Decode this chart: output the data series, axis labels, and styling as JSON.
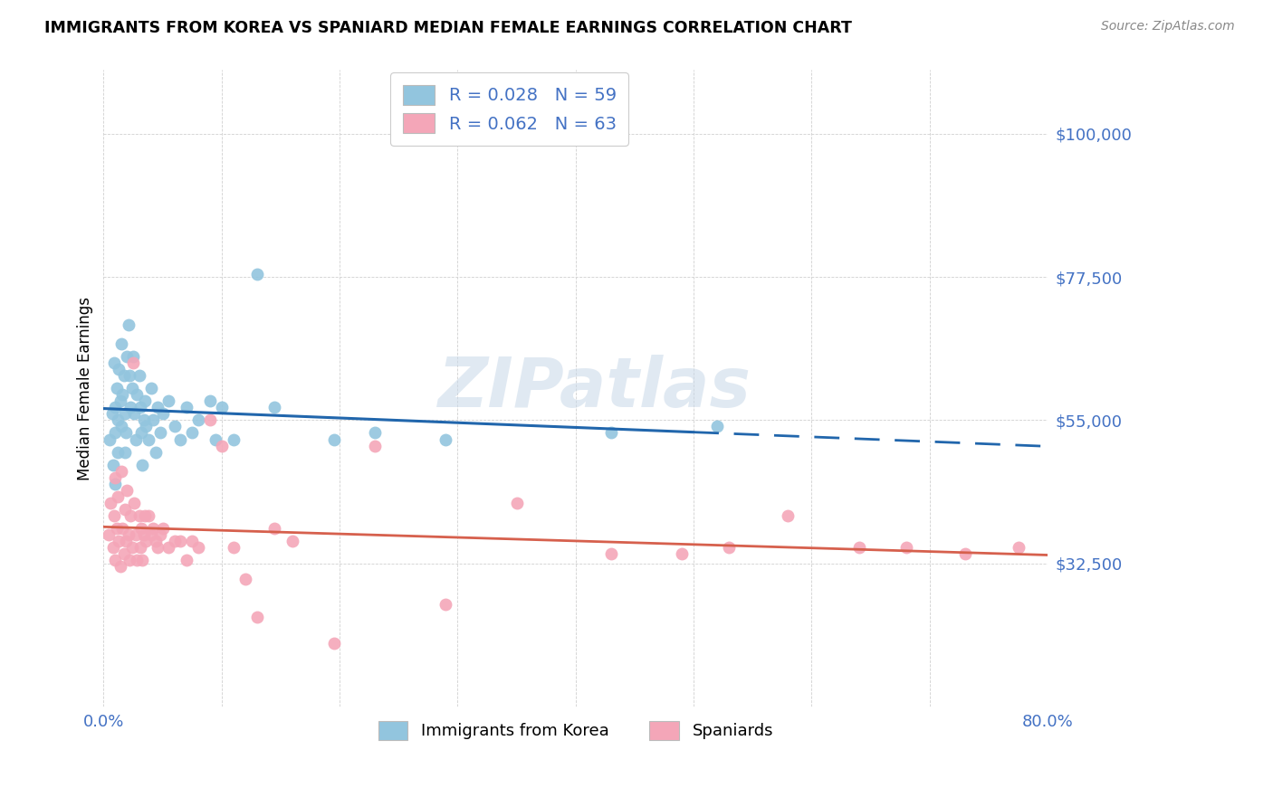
{
  "title": "IMMIGRANTS FROM KOREA VS SPANIARD MEDIAN FEMALE EARNINGS CORRELATION CHART",
  "source": "Source: ZipAtlas.com",
  "ylabel": "Median Female Earnings",
  "ytick_labels": [
    "$32,500",
    "$55,000",
    "$77,500",
    "$100,000"
  ],
  "ytick_values": [
    32500,
    55000,
    77500,
    100000
  ],
  "ymin": 10000,
  "ymax": 110000,
  "xmin": 0.0,
  "xmax": 0.8,
  "watermark": "ZIPatlas",
  "legend_r1": "0.028",
  "legend_n1": "59",
  "legend_r2": "0.062",
  "legend_n2": "63",
  "legend_label1": "Immigrants from Korea",
  "legend_label2": "Spaniards",
  "color_korea": "#92c5de",
  "color_spain": "#f4a6b8",
  "color_korea_line": "#2166ac",
  "color_spain_line": "#d6604d",
  "color_axis_labels": "#4472c4",
  "korea_x": [
    0.005,
    0.007,
    0.008,
    0.009,
    0.01,
    0.01,
    0.01,
    0.011,
    0.012,
    0.012,
    0.013,
    0.014,
    0.015,
    0.015,
    0.016,
    0.017,
    0.018,
    0.018,
    0.019,
    0.02,
    0.021,
    0.022,
    0.023,
    0.024,
    0.025,
    0.026,
    0.027,
    0.028,
    0.03,
    0.031,
    0.032,
    0.033,
    0.034,
    0.035,
    0.036,
    0.038,
    0.04,
    0.042,
    0.044,
    0.046,
    0.048,
    0.05,
    0.055,
    0.06,
    0.065,
    0.07,
    0.075,
    0.08,
    0.09,
    0.095,
    0.1,
    0.11,
    0.13,
    0.145,
    0.195,
    0.23,
    0.29,
    0.43,
    0.52
  ],
  "korea_y": [
    52000,
    56000,
    48000,
    64000,
    53000,
    57000,
    45000,
    60000,
    55000,
    50000,
    63000,
    58000,
    67000,
    54000,
    59000,
    62000,
    56000,
    50000,
    53000,
    65000,
    70000,
    62000,
    57000,
    60000,
    65000,
    56000,
    52000,
    59000,
    62000,
    57000,
    53000,
    48000,
    55000,
    58000,
    54000,
    52000,
    60000,
    55000,
    50000,
    57000,
    53000,
    56000,
    58000,
    54000,
    52000,
    57000,
    53000,
    55000,
    58000,
    52000,
    57000,
    52000,
    78000,
    57000,
    52000,
    53000,
    52000,
    53000,
    54000
  ],
  "spain_x": [
    0.004,
    0.006,
    0.008,
    0.009,
    0.01,
    0.01,
    0.011,
    0.012,
    0.013,
    0.014,
    0.015,
    0.016,
    0.017,
    0.018,
    0.019,
    0.02,
    0.021,
    0.022,
    0.023,
    0.024,
    0.025,
    0.026,
    0.027,
    0.028,
    0.03,
    0.031,
    0.032,
    0.033,
    0.034,
    0.035,
    0.036,
    0.038,
    0.04,
    0.042,
    0.044,
    0.046,
    0.048,
    0.05,
    0.055,
    0.06,
    0.065,
    0.07,
    0.075,
    0.08,
    0.09,
    0.1,
    0.11,
    0.12,
    0.13,
    0.145,
    0.16,
    0.195,
    0.23,
    0.29,
    0.35,
    0.43,
    0.49,
    0.53,
    0.58,
    0.64,
    0.68,
    0.73,
    0.775
  ],
  "spain_y": [
    37000,
    42000,
    35000,
    40000,
    46000,
    33000,
    38000,
    43000,
    36000,
    32000,
    47000,
    38000,
    34000,
    41000,
    36000,
    44000,
    37000,
    33000,
    40000,
    35000,
    64000,
    42000,
    37000,
    33000,
    40000,
    35000,
    38000,
    33000,
    37000,
    40000,
    36000,
    40000,
    37000,
    38000,
    36000,
    35000,
    37000,
    38000,
    35000,
    36000,
    36000,
    33000,
    36000,
    35000,
    55000,
    51000,
    35000,
    30000,
    24000,
    38000,
    36000,
    20000,
    51000,
    26000,
    42000,
    34000,
    34000,
    35000,
    40000,
    35000,
    35000,
    34000,
    35000
  ]
}
